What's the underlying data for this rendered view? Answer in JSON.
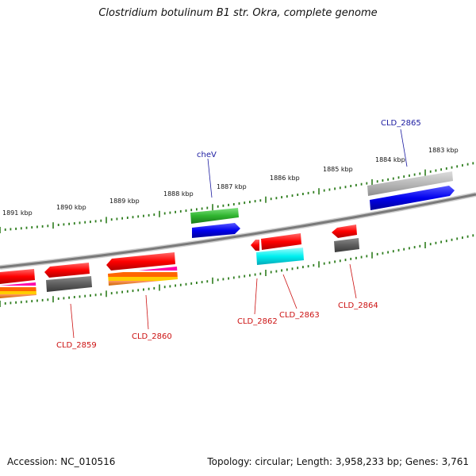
{
  "title": "Clostridium botulinum B1 str. Okra, complete genome",
  "footer": {
    "accession": "Accession: NC_010516",
    "summary": "Topology: circular; Length: 3,958,233 bp; Genes: 3,761"
  },
  "colors": {
    "tick": "#2e7d1e",
    "backbone": "#8a8a8a",
    "label_forward": "#1a1aa0",
    "label_reverse": "#cc1111"
  },
  "scale_labels": [
    "1891 kbp",
    "1890 kbp",
    "1889 kbp",
    "1888 kbp",
    "1887 kbp",
    "1886 kbp",
    "1885 kbp",
    "1884 kbp",
    "1883 kbp"
  ],
  "gene_labels": {
    "cheV": "cheV",
    "CLD_2865": "CLD_2865",
    "CLD_2859": "CLD_2859",
    "CLD_2860": "CLD_2860",
    "CLD_2862": "CLD_2862",
    "CLD_2863": "CLD_2863",
    "CLD_2864": "CLD_2864"
  }
}
